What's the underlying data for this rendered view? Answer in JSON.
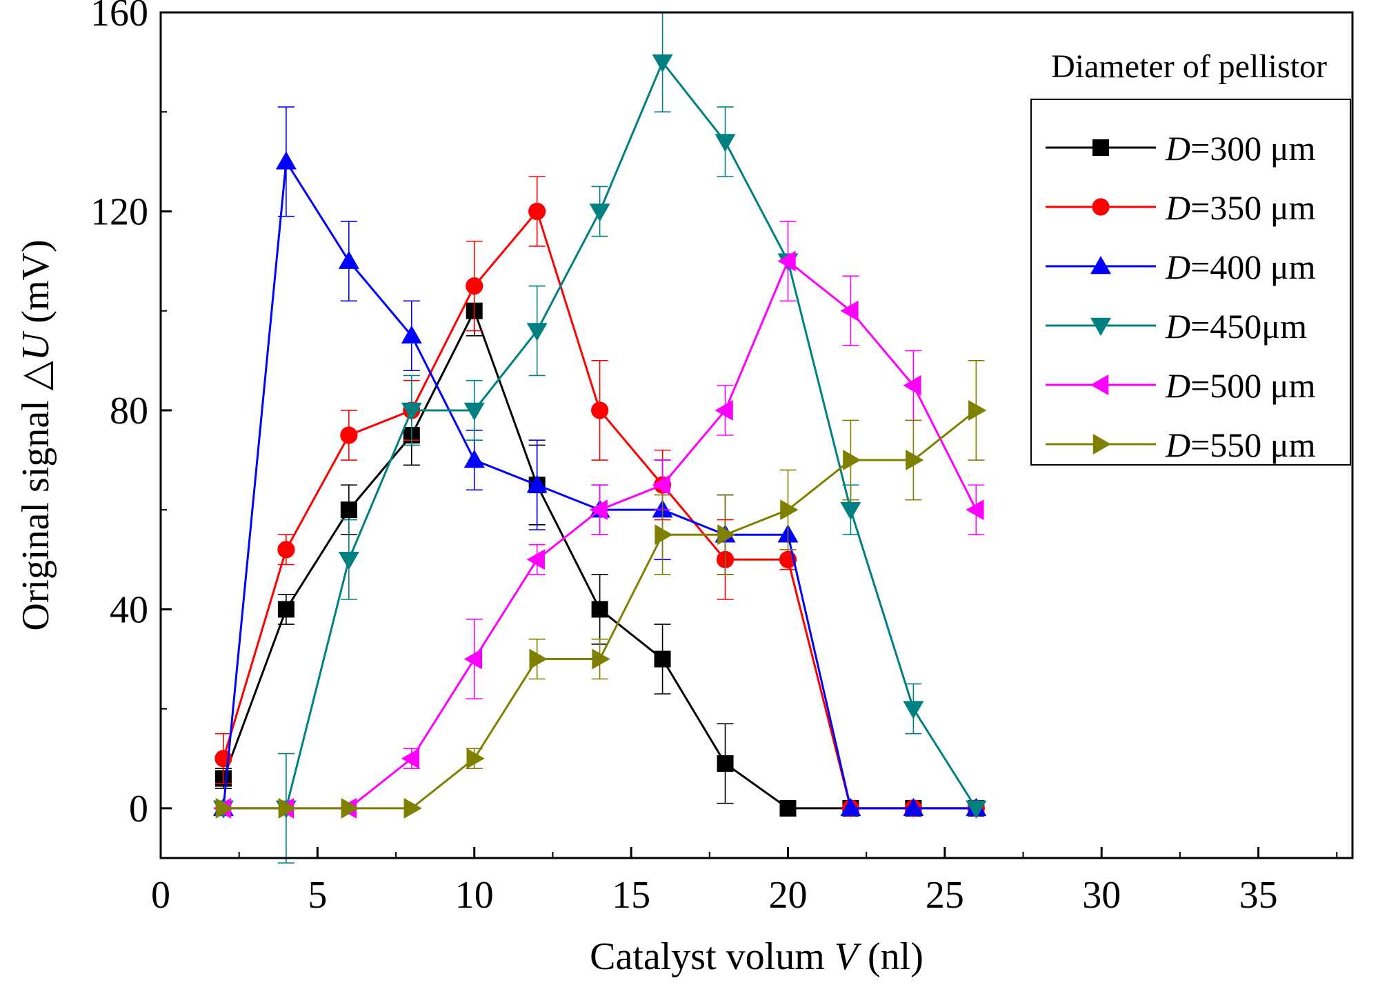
{
  "chart_data": {
    "type": "line",
    "title": "",
    "xlabel_prefix": "Catalyst volum ",
    "xlabel_var": "V",
    "xlabel_suffix": " (nl)",
    "ylabel_prefix": "Original signal ",
    "ylabel_var": "△U",
    "ylabel_suffix": " (mV)",
    "xlim": [
      0,
      38
    ],
    "ylim": [
      -10,
      160
    ],
    "xticks": [
      0,
      5,
      10,
      15,
      20,
      25,
      30,
      35
    ],
    "yticks": [
      0,
      40,
      80,
      120,
      160
    ],
    "grid": false,
    "legend_title": "Diameter of pellistor",
    "legend_position": "top-right",
    "series": [
      {
        "name_var": "D",
        "name_text": "=300 μm",
        "color": "#000000",
        "marker": "square",
        "x": [
          2,
          4,
          6,
          8,
          10,
          12,
          14,
          16,
          18,
          20,
          22,
          24,
          26
        ],
        "y": [
          6,
          40,
          60,
          75,
          100,
          65,
          40,
          30,
          9,
          0,
          0,
          0,
          0
        ],
        "err": [
          2,
          3,
          5,
          6,
          5,
          8,
          7,
          7,
          8,
          0,
          0,
          0,
          0
        ]
      },
      {
        "name_var": "D",
        "name_text": "=350 μm",
        "color": "#ff0000",
        "marker": "circle",
        "x": [
          2,
          4,
          6,
          8,
          10,
          12,
          14,
          16,
          18,
          20,
          22,
          24,
          26
        ],
        "y": [
          10,
          52,
          75,
          80,
          105,
          120,
          80,
          65,
          50,
          50,
          0,
          0,
          0
        ],
        "err": [
          5,
          3,
          5,
          6,
          9,
          7,
          10,
          7,
          8,
          2,
          0,
          0,
          0
        ]
      },
      {
        "name_var": "D",
        "name_text": "=400 μm",
        "color": "#0000ff",
        "marker": "triangle-up",
        "x": [
          2,
          4,
          6,
          8,
          10,
          12,
          14,
          16,
          18,
          20,
          22,
          24,
          26
        ],
        "y": [
          0,
          130,
          110,
          95,
          70,
          65,
          60,
          60,
          55,
          55,
          0,
          0,
          0
        ],
        "err": [
          0,
          11,
          8,
          7,
          6,
          9,
          5,
          10,
          8,
          0,
          0,
          0,
          0
        ]
      },
      {
        "name_var": "D",
        "name_text": "=450μm",
        "color": "#008080",
        "marker": "triangle-down",
        "x": [
          2,
          4,
          6,
          8,
          10,
          12,
          14,
          16,
          18,
          20,
          22,
          24,
          26
        ],
        "y": [
          0,
          0,
          50,
          80,
          80,
          96,
          120,
          150,
          134,
          110,
          60,
          20,
          0
        ],
        "err": [
          0,
          11,
          8,
          7,
          6,
          9,
          5,
          10,
          7,
          0,
          5,
          5,
          0
        ]
      },
      {
        "name_var": "D",
        "name_text": "=500 μm",
        "color": "#ff00ff",
        "marker": "triangle-left",
        "x": [
          2,
          4,
          6,
          8,
          10,
          12,
          14,
          16,
          18,
          20,
          22,
          24,
          26
        ],
        "y": [
          0,
          0,
          0,
          10,
          30,
          50,
          60,
          65,
          80,
          110,
          100,
          85,
          60
        ],
        "err": [
          0,
          0,
          0,
          2,
          8,
          3,
          5,
          5,
          5,
          8,
          7,
          7,
          5
        ]
      },
      {
        "name_var": "D",
        "name_text": "=550 μm",
        "color": "#808000",
        "marker": "triangle-right",
        "x": [
          2,
          4,
          6,
          8,
          10,
          12,
          14,
          16,
          18,
          20,
          22,
          24,
          26
        ],
        "y": [
          0,
          0,
          0,
          0,
          10,
          30,
          30,
          55,
          55,
          60,
          70,
          70,
          80
        ],
        "err": [
          0,
          0,
          0,
          0,
          2,
          4,
          4,
          8,
          8,
          8,
          8,
          8,
          10
        ]
      }
    ]
  }
}
